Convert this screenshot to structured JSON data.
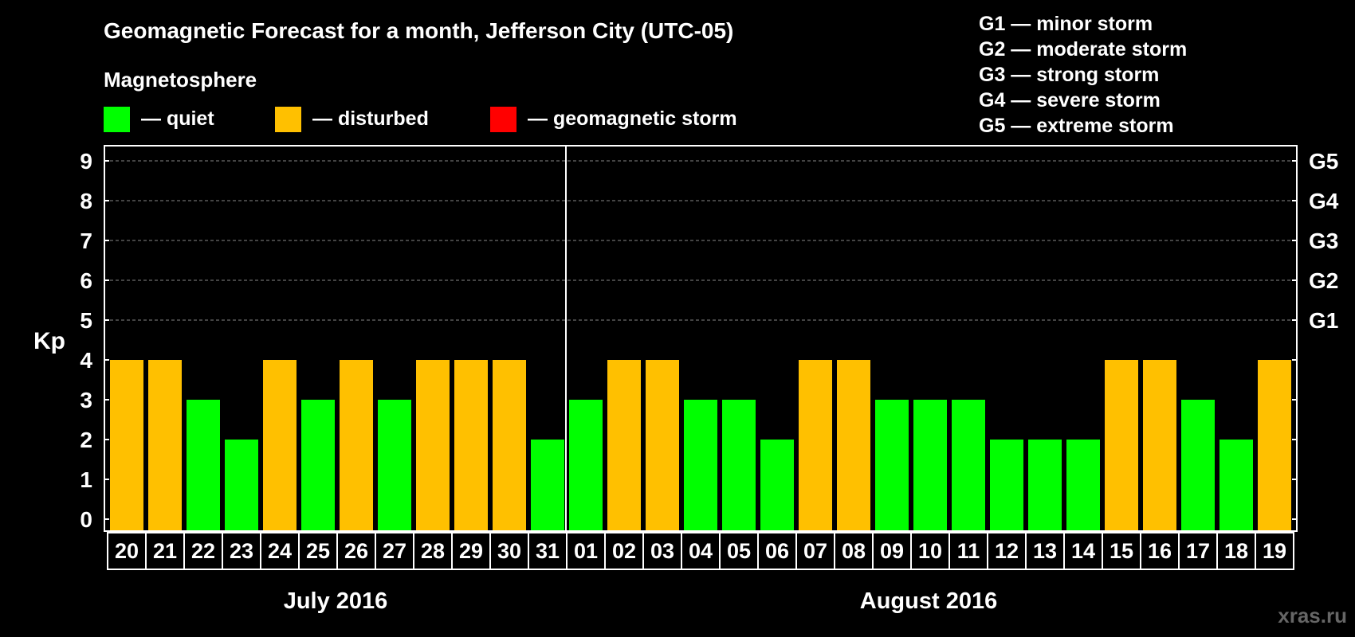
{
  "chart_data": {
    "type": "bar",
    "title": "Geomagnetic Forecast for a month, Jefferson City (UTC-05)",
    "ylabel": "Kp",
    "ylim": [
      0,
      9
    ],
    "yticks": [
      0,
      1,
      2,
      3,
      4,
      5,
      6,
      7,
      8,
      9
    ],
    "storm_levels": [
      {
        "kp": 5,
        "label": "G1"
      },
      {
        "kp": 6,
        "label": "G2"
      },
      {
        "kp": 7,
        "label": "G3"
      },
      {
        "kp": 8,
        "label": "G4"
      },
      {
        "kp": 9,
        "label": "G5"
      }
    ],
    "storm_legend": [
      "G1 — minor storm",
      "G2 — moderate storm",
      "G3 — strong storm",
      "G4 — severe storm",
      "G5 — extreme storm"
    ],
    "legend_title": "Magnetosphere",
    "legend": [
      {
        "label": "— quiet",
        "color": "#00ff00"
      },
      {
        "label": "— disturbed",
        "color": "#ffc000"
      },
      {
        "label": "— geomagnetic storm",
        "color": "#ff0000"
      }
    ],
    "months": [
      {
        "label": "July 2016",
        "days": [
          "20",
          "21",
          "22",
          "23",
          "24",
          "25",
          "26",
          "27",
          "28",
          "29",
          "30",
          "31"
        ]
      },
      {
        "label": "August 2016",
        "days": [
          "01",
          "02",
          "03",
          "04",
          "05",
          "06",
          "07",
          "08",
          "09",
          "10",
          "11",
          "12",
          "13",
          "14",
          "15",
          "16",
          "17",
          "18",
          "19"
        ]
      }
    ],
    "values": [
      4,
      4,
      3,
      2,
      4,
      3,
      4,
      3,
      4,
      4,
      4,
      2,
      3,
      4,
      4,
      3,
      3,
      2,
      4,
      4,
      3,
      3,
      3,
      2,
      2,
      2,
      4,
      4,
      3,
      2,
      4
    ],
    "grid": "dashed at Kp 5–9"
  },
  "watermark": "xras.ru"
}
